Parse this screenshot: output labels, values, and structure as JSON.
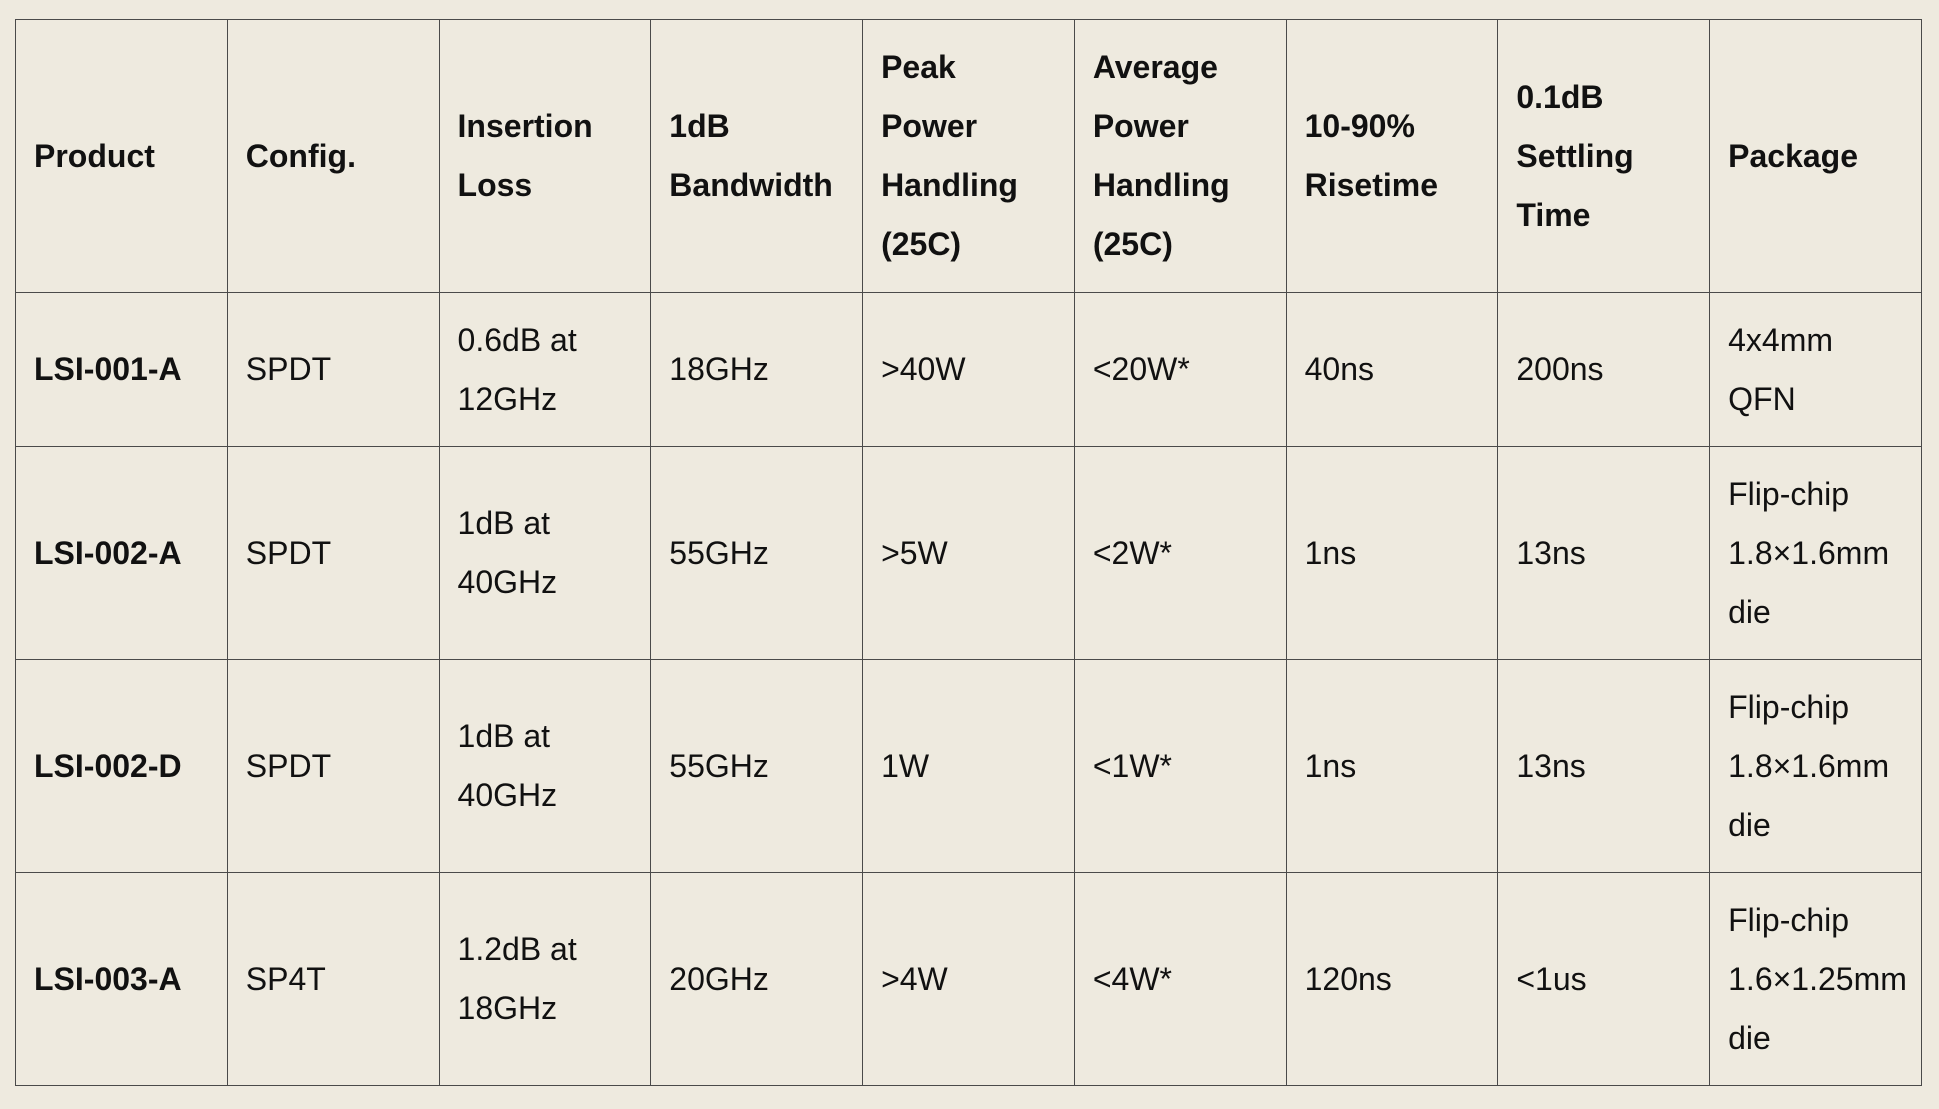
{
  "table": {
    "header": [
      "Product",
      "Config.",
      "Insertion Loss",
      "1dB Bandwidth",
      "Peak Power Handling (25C)",
      "Average Power Handling (25C)",
      "10-90% Risetime",
      "0.1dB Settling Time",
      "Package"
    ],
    "rows": [
      [
        "LSI-001-A",
        "SPDT",
        "0.6dB at 12GHz",
        "18GHz",
        ">40W",
        "<20W*",
        "40ns",
        "200ns",
        "4x4mm QFN"
      ],
      [
        "LSI-002-A",
        "SPDT",
        "1dB at 40GHz",
        "55GHz",
        ">5W",
        "<2W*",
        "1ns",
        "13ns",
        "Flip-chip 1.8×1.6mm die"
      ],
      [
        "LSI-002-D",
        "SPDT",
        "1dB at 40GHz",
        "55GHz",
        "1W",
        "<1W*",
        "1ns",
        "13ns",
        "Flip-chip 1.8×1.6mm die"
      ],
      [
        "LSI-003-A",
        "SP4T",
        "1.2dB at 18GHz",
        "20GHz",
        ">4W",
        "<4W*",
        "120ns",
        "<1us",
        "Flip-chip 1.6×1.25mm die"
      ]
    ]
  }
}
